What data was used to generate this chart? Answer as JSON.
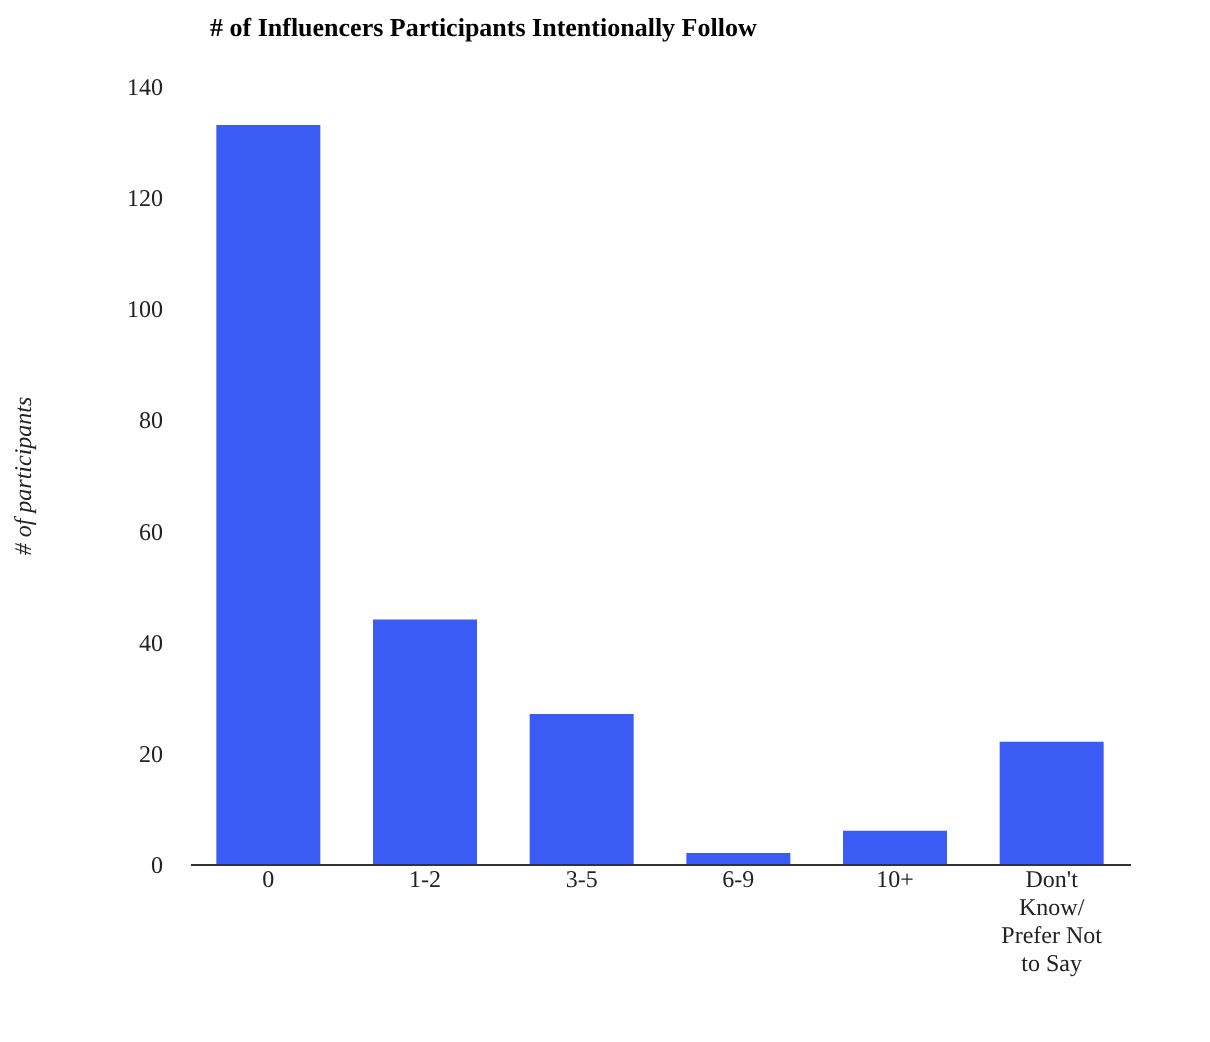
{
  "chart_data": {
    "type": "bar",
    "title": "# of Influencers Participants Intentionally Follow",
    "ylabel": "# of participants",
    "categories": [
      "0",
      "1-2",
      "3-5",
      "6-9",
      "10+",
      "Don't Know/ Prefer Not to Say"
    ],
    "values": [
      133,
      44,
      27,
      2,
      6,
      22
    ],
    "color": "#3a5cf5",
    "ylim": [
      0,
      140
    ],
    "yticks": [
      0,
      20,
      40,
      60,
      80,
      100,
      120,
      140
    ],
    "grid": false
  }
}
